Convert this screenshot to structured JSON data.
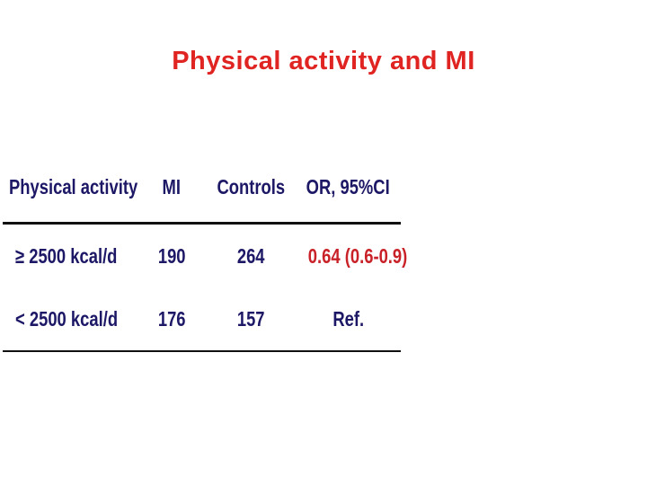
{
  "title": "Physical activity and MI",
  "table": {
    "headers": [
      "Physical activity",
      "MI",
      "Controls",
      "OR, 95%CI"
    ],
    "rows": [
      {
        "activity": "≥ 2500 kcal/d",
        "mi": "190",
        "controls": "264",
        "or": "0.64 (0.6-0.9)",
        "or_highlighted": true
      },
      {
        "activity": "< 2500 kcal/d",
        "mi": "176",
        "controls": "157",
        "or": "Ref.",
        "or_highlighted": false
      }
    ]
  },
  "colors": {
    "title_red": "#df2422",
    "table_text_navy": "#1d1866",
    "or_highlight_red": "#c92128",
    "divider_black": "#101010",
    "background": "#ffffff"
  }
}
